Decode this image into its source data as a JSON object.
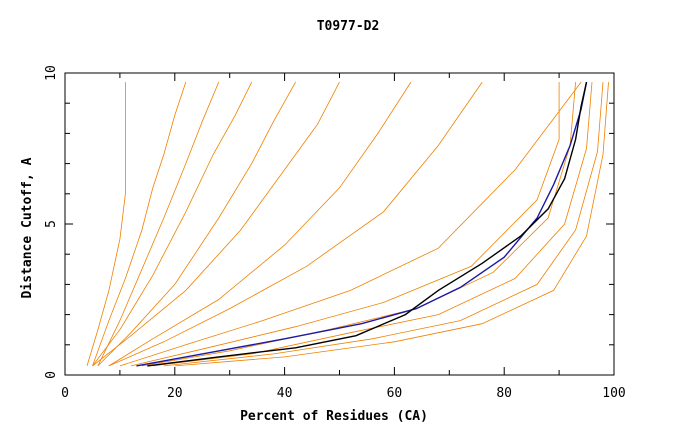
{
  "chart_data": {
    "type": "line",
    "title": "T0977-D2",
    "xlabel": "Percent of Residues (CA)",
    "ylabel": "Distance Cutoff, A",
    "xlim": [
      0,
      100
    ],
    "ylim": [
      0,
      10
    ],
    "xticks": [
      "0",
      "20",
      "40",
      "60",
      "80",
      "100"
    ],
    "yticks": [
      "0",
      "5",
      "10"
    ],
    "grid": false,
    "colors": {
      "bundle": "#f08000",
      "highlight_blue": "#1a1aa6",
      "highlight_black": "#000000",
      "axes": "#000000"
    },
    "series": [
      {
        "role": "bundle",
        "x": [
          4,
          6,
          8,
          10,
          11,
          11,
          11,
          11,
          11
        ],
        "y": [
          0.3,
          1.5,
          2.8,
          4.5,
          6.0,
          7.0,
          8.0,
          9.0,
          9.7
        ]
      },
      {
        "role": "bundle",
        "x": [
          5,
          8,
          11,
          14,
          16,
          18,
          20,
          22
        ],
        "y": [
          0.3,
          1.8,
          3.2,
          4.8,
          6.2,
          7.3,
          8.6,
          9.7
        ]
      },
      {
        "role": "bundle",
        "x": [
          6,
          10,
          14,
          18,
          22,
          25,
          28
        ],
        "y": [
          0.3,
          1.8,
          3.5,
          5.2,
          7.0,
          8.4,
          9.7
        ]
      },
      {
        "role": "bundle",
        "x": [
          5,
          10,
          16,
          22,
          27,
          31,
          34
        ],
        "y": [
          0.3,
          1.5,
          3.3,
          5.4,
          7.3,
          8.6,
          9.7
        ]
      },
      {
        "role": "bundle",
        "x": [
          6,
          12,
          20,
          28,
          34,
          38,
          42
        ],
        "y": [
          0.3,
          1.4,
          3.0,
          5.2,
          7.0,
          8.4,
          9.7
        ]
      },
      {
        "role": "bundle",
        "x": [
          5,
          12,
          22,
          32,
          40,
          46,
          50
        ],
        "y": [
          0.3,
          1.3,
          2.8,
          4.8,
          6.8,
          8.3,
          9.7
        ]
      },
      {
        "role": "bundle",
        "x": [
          8,
          16,
          28,
          40,
          50,
          57,
          63
        ],
        "y": [
          0.3,
          1.2,
          2.5,
          4.3,
          6.2,
          8.0,
          9.7
        ]
      },
      {
        "role": "bundle",
        "x": [
          8,
          18,
          30,
          44,
          58,
          68,
          76
        ],
        "y": [
          0.3,
          1.1,
          2.2,
          3.6,
          5.4,
          7.6,
          9.7
        ]
      },
      {
        "role": "bundle",
        "x": [
          10,
          22,
          36,
          52,
          68,
          82,
          94
        ],
        "y": [
          0.3,
          1.0,
          1.8,
          2.8,
          4.2,
          6.8,
          9.7
        ]
      },
      {
        "role": "bundle",
        "x": [
          12,
          26,
          42,
          58,
          74,
          86,
          90,
          90
        ],
        "y": [
          0.3,
          0.9,
          1.6,
          2.4,
          3.6,
          5.8,
          7.8,
          9.7
        ]
      },
      {
        "role": "bundle",
        "x": [
          14,
          30,
          48,
          64,
          78,
          88,
          92,
          93
        ],
        "y": [
          0.3,
          0.8,
          1.5,
          2.2,
          3.4,
          5.2,
          7.6,
          9.7
        ]
      },
      {
        "role": "bundle",
        "x": [
          16,
          34,
          52,
          68,
          82,
          91,
          95,
          96
        ],
        "y": [
          0.3,
          0.7,
          1.4,
          2.0,
          3.2,
          5.0,
          7.5,
          9.7
        ]
      },
      {
        "role": "bundle",
        "x": [
          18,
          38,
          56,
          72,
          86,
          93,
          97,
          98
        ],
        "y": [
          0.3,
          0.7,
          1.2,
          1.8,
          3.0,
          4.8,
          7.4,
          9.7
        ]
      },
      {
        "role": "bundle",
        "x": [
          20,
          40,
          60,
          76,
          89,
          95,
          98,
          99
        ],
        "y": [
          0.3,
          0.6,
          1.1,
          1.7,
          2.8,
          4.6,
          7.3,
          9.7
        ]
      },
      {
        "role": "highlight_blue",
        "x": [
          13,
          25,
          40,
          54,
          64,
          72,
          80,
          86,
          89,
          92,
          94,
          95
        ],
        "y": [
          0.3,
          0.7,
          1.2,
          1.7,
          2.2,
          2.9,
          3.9,
          5.2,
          6.3,
          7.6,
          8.8,
          9.7
        ]
      },
      {
        "role": "highlight_black",
        "x": [
          15,
          28,
          42,
          53,
          62,
          68,
          76,
          83,
          88,
          91,
          93,
          94,
          95
        ],
        "y": [
          0.3,
          0.6,
          0.9,
          1.3,
          2.0,
          2.8,
          3.7,
          4.6,
          5.5,
          6.5,
          7.8,
          8.9,
          9.7
        ]
      }
    ]
  }
}
